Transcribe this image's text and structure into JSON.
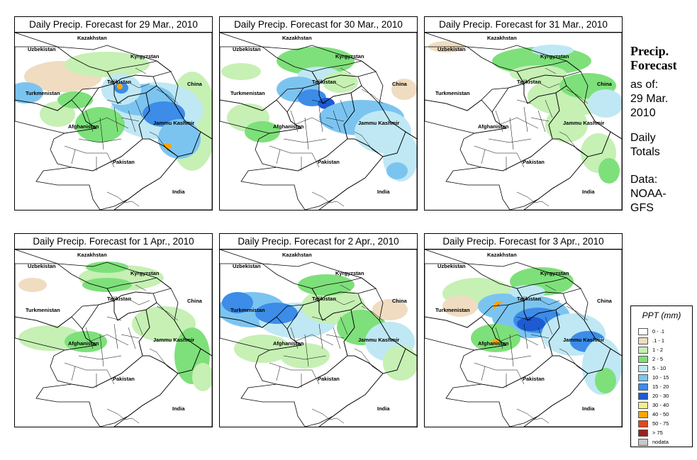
{
  "panels": [
    {
      "title": "Daily Precip. Forecast for  29 Mar., 2010"
    },
    {
      "title": "Daily Precip. Forecast for  30 Mar., 2010"
    },
    {
      "title": "Daily Precip. Forecast for  31 Mar., 2010"
    },
    {
      "title": "Daily Precip. Forecast for  1 Apr., 2010"
    },
    {
      "title": "Daily Precip. Forecast for  2 Apr., 2010"
    },
    {
      "title": "Daily Precip. Forecast for  3 Apr., 2010"
    }
  ],
  "map_labels": {
    "kazakhstan": "Kazakhstan",
    "uzbekistan": "Uzbekistan",
    "kyrgyzstan": "Kyrgyzstan",
    "tajikistan": "Tajikistan",
    "turkmenistan": "Turkmenistan",
    "china": "China",
    "afghanistan": "Afghanistan",
    "jammu_kashmir": "Jammu Kashmir",
    "pakistan": "Pakistan",
    "india": "India"
  },
  "sidebar": {
    "title_line1": "Precip.",
    "title_line2": "Forecast",
    "asof_line1": "as of:",
    "asof_line2": "29 Mar.",
    "asof_line3": "2010",
    "daily_line1": "Daily",
    "daily_line2": "Totals",
    "data_line1": "Data:",
    "data_line2": "NOAA-",
    "data_line3": "GFS"
  },
  "legend": {
    "title": "PPT (mm)",
    "items": [
      {
        "range": "0 - .1",
        "color": "#ffffff"
      },
      {
        "range": ".1 - 1",
        "color": "#f0dcc0"
      },
      {
        "range": "1 - 2",
        "color": "#c6f0b4"
      },
      {
        "range": "2 - 5",
        "color": "#7ee07a"
      },
      {
        "range": "5 - 10",
        "color": "#bfe8f4"
      },
      {
        "range": "10 - 15",
        "color": "#7cc4f0"
      },
      {
        "range": "15 - 20",
        "color": "#3c8ce8"
      },
      {
        "range": "20 - 30",
        "color": "#1e5ad2"
      },
      {
        "range": "30 - 40",
        "color": "#f5ee8c"
      },
      {
        "range": "40 - 50",
        "color": "#ffa500"
      },
      {
        "range": "50 - 75",
        "color": "#e64614"
      },
      {
        "range": "> 75",
        "color": "#a01e1e"
      },
      {
        "range": "nodata",
        "color": "#c8c8c8"
      }
    ]
  }
}
